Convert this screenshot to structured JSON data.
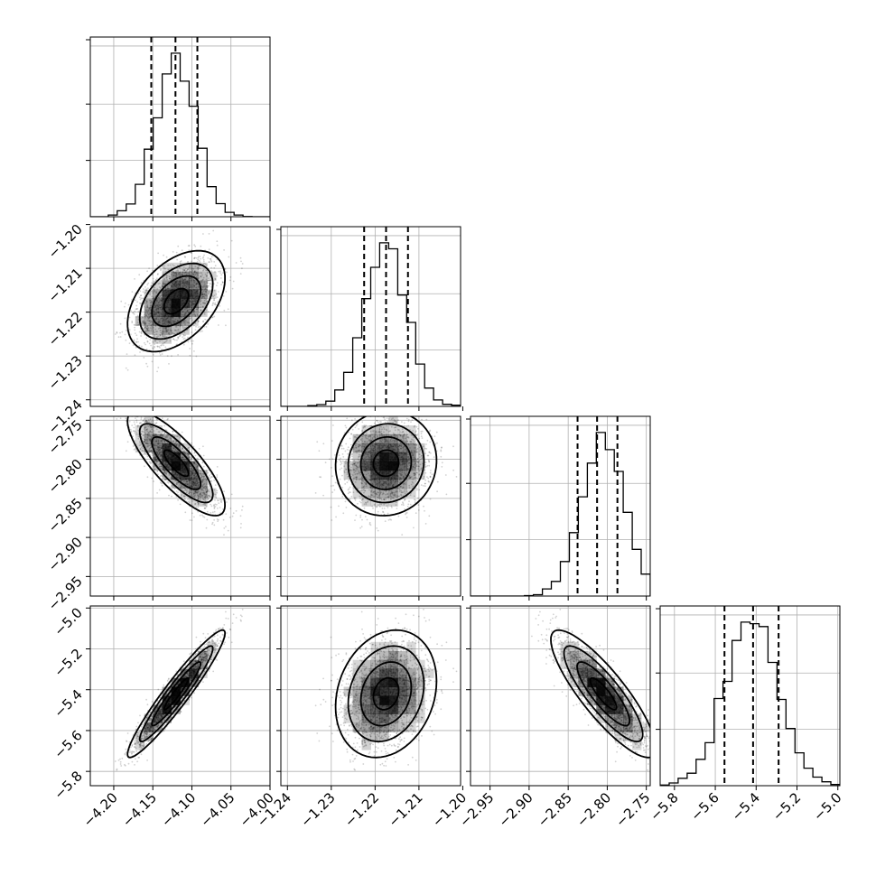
{
  "chart_data": {
    "type": "corner",
    "grid": true,
    "parameters": [
      {
        "index": 0,
        "center": -4.12,
        "std": 0.026,
        "range": [
          -4.23,
          -4.0
        ],
        "quantiles": [
          -4.152,
          -4.121,
          -4.093
        ],
        "ticks": [
          "-4.20",
          "-4.15",
          "-4.10",
          "-4.05",
          "-4.00"
        ]
      },
      {
        "index": 1,
        "center": -1.2175,
        "std": 0.0048,
        "range": [
          -1.2415,
          -1.2005
        ],
        "quantiles": [
          -1.2225,
          -1.2175,
          -1.2125
        ],
        "ticks": [
          "-1.24",
          "-1.23",
          "-1.22",
          "-1.21",
          "-1.20"
        ]
      },
      {
        "index": 2,
        "center": -2.805,
        "std": 0.028,
        "range": [
          -2.975,
          -2.745
        ],
        "quantiles": [
          -2.838,
          -2.813,
          -2.787
        ],
        "ticks": [
          "-2.95",
          "-2.90",
          "-2.85",
          "-2.80",
          "-2.75"
        ]
      },
      {
        "index": 3,
        "center": -5.42,
        "std": 0.13,
        "range": [
          -5.87,
          -4.99
        ],
        "quantiles": [
          -5.555,
          -5.415,
          -5.29
        ],
        "ticks": [
          "-5.8",
          "-5.6",
          "-5.4",
          "-5.2",
          "-5.0"
        ]
      }
    ],
    "correlations": [
      [
        1,
        0.45,
        -0.8,
        0.95
      ],
      [
        0.45,
        1,
        0.05,
        0.2
      ],
      [
        -0.8,
        0.05,
        1,
        -0.85
      ],
      [
        0.95,
        0.2,
        -0.85,
        1
      ]
    ]
  },
  "colors": {
    "line": "#000000",
    "grid": "#b0b0b0",
    "density": "#000000",
    "background": "#ffffff"
  }
}
